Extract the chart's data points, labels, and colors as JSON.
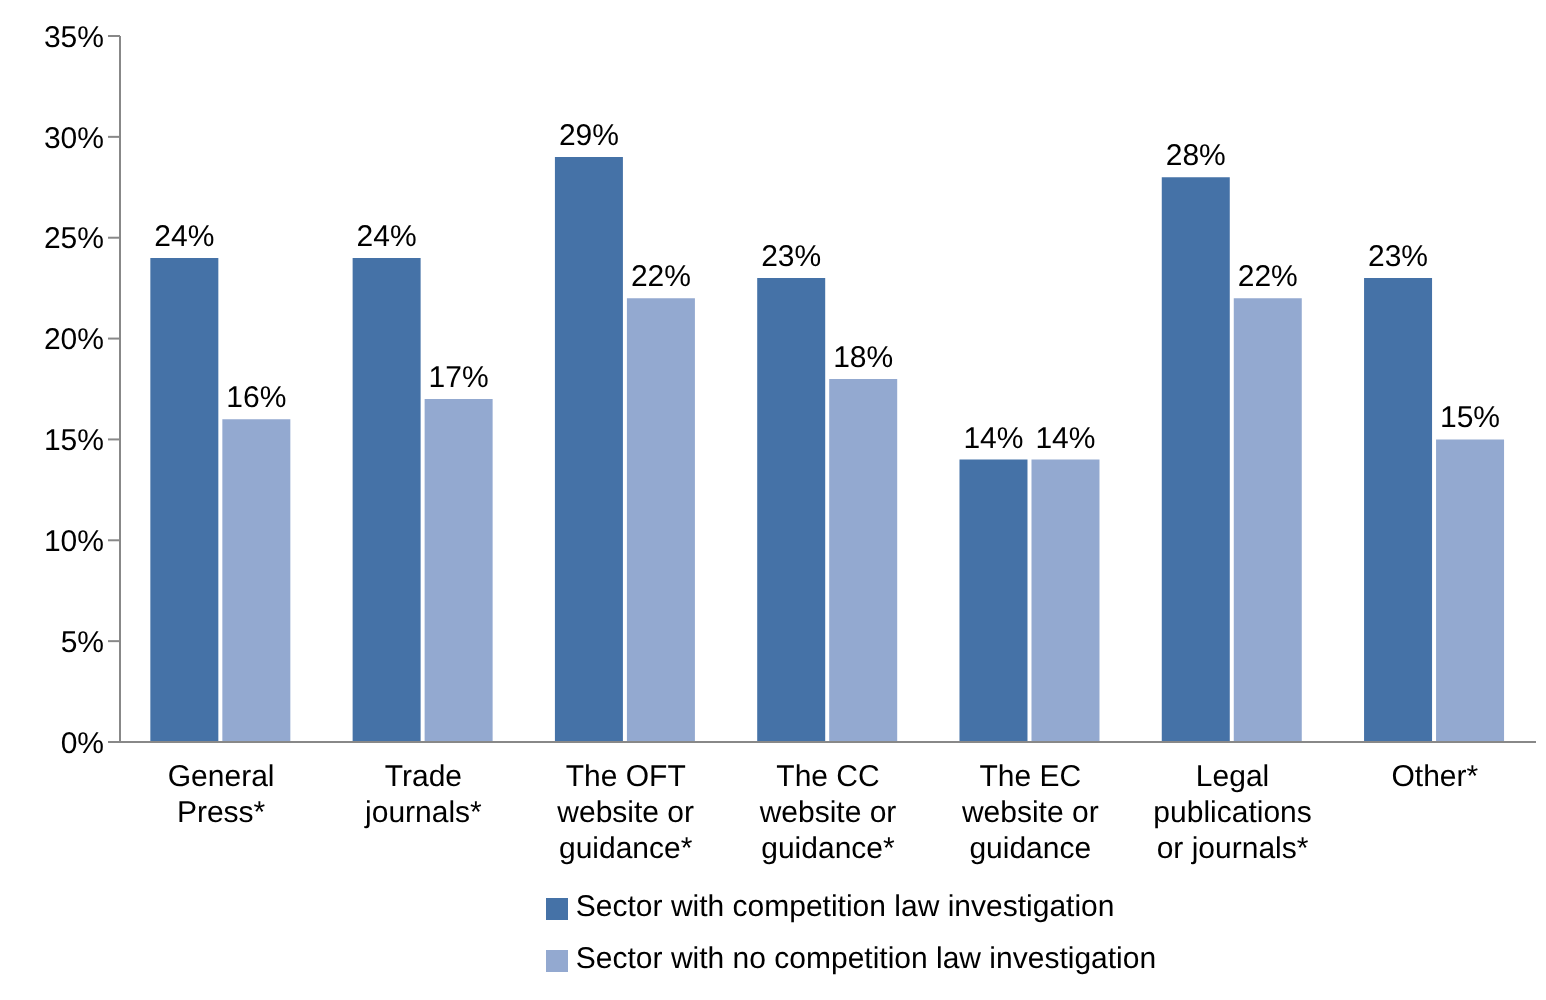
{
  "chart_data": {
    "type": "bar",
    "categories": [
      "General Press*",
      "Trade journals*",
      "The OFT website or guidance*",
      "The CC website or guidance*",
      "The EC website or guidance",
      "Legal publications or journals*",
      "Other*"
    ],
    "series": [
      {
        "name": "Sector with competition law investigation",
        "color": "#4572a7",
        "values": [
          24,
          24,
          29,
          23,
          14,
          28,
          23
        ],
        "value_labels": [
          "24%",
          "24%",
          "29%",
          "23%",
          "14%",
          "28%",
          "23%"
        ]
      },
      {
        "name": "Sector with no competition law investigation",
        "color": "#93a9d0",
        "values": [
          16,
          17,
          22,
          18,
          14,
          22,
          15
        ],
        "value_labels": [
          "16%",
          "17%",
          "22%",
          "18%",
          "14%",
          "22%",
          "15%"
        ]
      }
    ],
    "ylim": [
      0,
      35
    ],
    "yticks": [
      {
        "value": 0,
        "label": "0%"
      },
      {
        "value": 5,
        "label": "5%"
      },
      {
        "value": 10,
        "label": "10%"
      },
      {
        "value": 15,
        "label": "15%"
      },
      {
        "value": 20,
        "label": "20%"
      },
      {
        "value": 25,
        "label": "25%"
      },
      {
        "value": 30,
        "label": "30%"
      },
      {
        "value": 35,
        "label": "35%"
      }
    ],
    "grid": false,
    "legend": "bottom"
  }
}
